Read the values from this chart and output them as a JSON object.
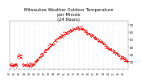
{
  "title": "Milwaukee Weather Outdoor Temperature\nper Minute\n(24 Hours)",
  "title_fontsize": 3.8,
  "bg_color": "#ffffff",
  "dot_color": "#ff0000",
  "dot_size": 0.4,
  "ylim": [
    10,
    75
  ],
  "yticks": [
    20,
    30,
    40,
    50,
    60,
    70
  ],
  "ytick_fontsize": 2.8,
  "xtick_fontsize": 2.2,
  "grid_color": "#999999",
  "num_points": 1440,
  "noise_seed": 42
}
